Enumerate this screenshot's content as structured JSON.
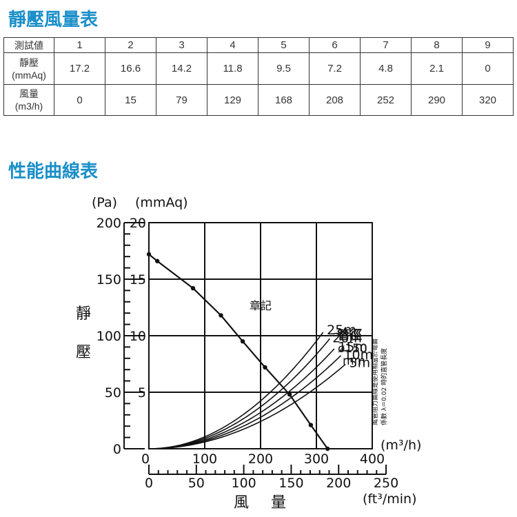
{
  "sections": {
    "table_title": "靜壓風量表",
    "chart_title": "性能曲線表"
  },
  "table": {
    "header_label": "測試値",
    "columns": [
      "1",
      "2",
      "3",
      "4",
      "5",
      "6",
      "7",
      "8",
      "9"
    ],
    "rows": [
      {
        "label_line1": "靜壓",
        "label_line2": "(mmAq)",
        "values": [
          "17.2",
          "16.6",
          "14.2",
          "11.8",
          "9.5",
          "7.2",
          "4.8",
          "2.1",
          "0"
        ]
      },
      {
        "label_line1": "風量",
        "label_line2": "(m3/h)",
        "values": [
          "0",
          "15",
          "79",
          "129",
          "168",
          "208",
          "252",
          "290",
          "320"
        ]
      }
    ]
  },
  "chart_data": {
    "type": "line",
    "title": "",
    "units": {
      "pa": "(Pa)",
      "mmaq": "(mmAq)",
      "m3h": "(m³/h)",
      "ftmin": "(ft³/min)"
    },
    "ylabel": "靜壓",
    "xlabel": "風量",
    "x_ticks_m3h": [
      "0",
      "100",
      "200",
      "300",
      "400"
    ],
    "x_ticks_ftmin": [
      "0",
      "50",
      "100",
      "150",
      "200",
      "250"
    ],
    "y_ticks_pa": [
      "0",
      "50",
      "100",
      "150",
      "200"
    ],
    "y_ticks_mmaq": [
      "5",
      "10",
      "15",
      "20"
    ],
    "xlim": [
      0,
      400
    ],
    "ylim": [
      0,
      20
    ],
    "grid": true,
    "series": [
      {
        "x": [
          0,
          15,
          79,
          129,
          168,
          208,
          252,
          290,
          320
        ],
        "y": [
          17.2,
          16.6,
          14.2,
          11.8,
          9.5,
          7.2,
          4.8,
          2.1,
          0
        ]
      }
    ],
    "duct_curves": [
      {
        "name": "25m",
        "end": [
          315,
          10.5
        ]
      },
      {
        "name": "20m",
        "end": [
          325,
          9.8
        ]
      },
      {
        "name": "15m",
        "end": [
          335,
          9.0
        ]
      },
      {
        "name": "10m",
        "end": [
          345,
          8.3
        ]
      },
      {
        "name": "5m",
        "end": [
          355,
          7.6
        ]
      }
    ],
    "annotations": {
      "pipe_label": "管徑",
      "pipe_size": "ø150",
      "pipe_unit": "mm",
      "note_line1": "風管阻力曲線是使用相當於彎曲",
      "note_line2": "係數 λ＝0.02 時的直管長度",
      "stamp": "章記"
    }
  }
}
